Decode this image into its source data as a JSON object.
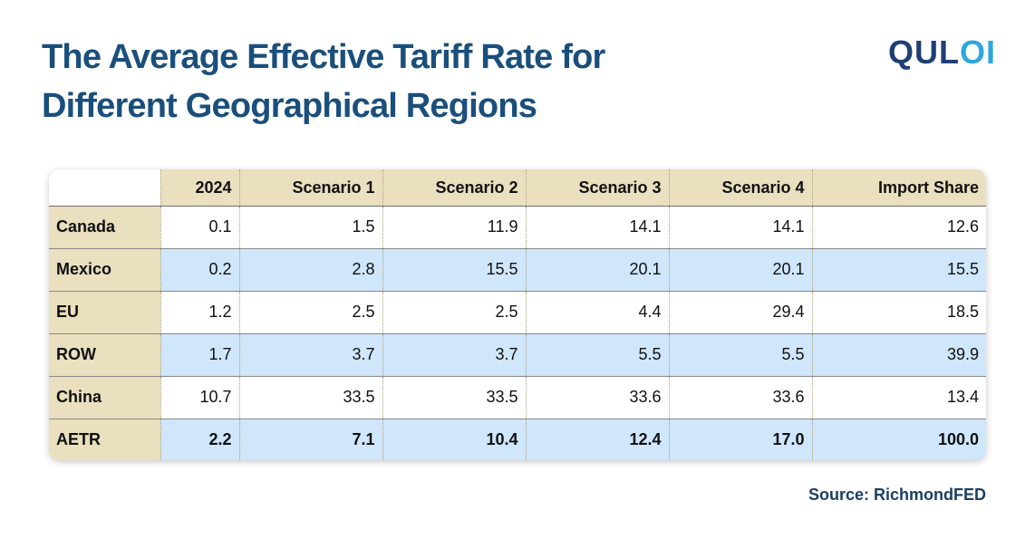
{
  "header": {
    "title": "The Average Effective Tariff Rate for Different Geographical Regions",
    "logo_part1": "QUL",
    "logo_part2": "OI"
  },
  "colors": {
    "title": "#1a4f7c",
    "header_fill": "#eadfbe",
    "alt_row_fill": "#cfe6fb",
    "logo_dark": "#1f3f73",
    "logo_light": "#2ea7df"
  },
  "chart_data": {
    "type": "table",
    "title": "The Average Effective Tariff Rate for Different Geographical Regions",
    "columns": [
      "",
      "2024",
      "Scenario 1",
      "Scenario 2",
      "Scenario 3",
      "Scenario 4",
      "Import Share"
    ],
    "rows": [
      {
        "label": "Canada",
        "values": [
          "0.1",
          "1.5",
          "11.9",
          "14.1",
          "14.1",
          "12.6"
        ]
      },
      {
        "label": "Mexico",
        "values": [
          "0.2",
          "2.8",
          "15.5",
          "20.1",
          "20.1",
          "15.5"
        ]
      },
      {
        "label": "EU",
        "values": [
          "1.2",
          "2.5",
          "2.5",
          "4.4",
          "29.4",
          "18.5"
        ]
      },
      {
        "label": "ROW",
        "values": [
          "1.7",
          "3.7",
          "3.7",
          "5.5",
          "5.5",
          "39.9"
        ]
      },
      {
        "label": "China",
        "values": [
          "10.7",
          "33.5",
          "33.5",
          "33.6",
          "33.6",
          "13.4"
        ]
      },
      {
        "label": "AETR",
        "values": [
          "2.2",
          "7.1",
          "10.4",
          "12.4",
          "17.0",
          "100.0"
        ]
      }
    ]
  },
  "footer": {
    "source": "Source: RichmondFED"
  }
}
